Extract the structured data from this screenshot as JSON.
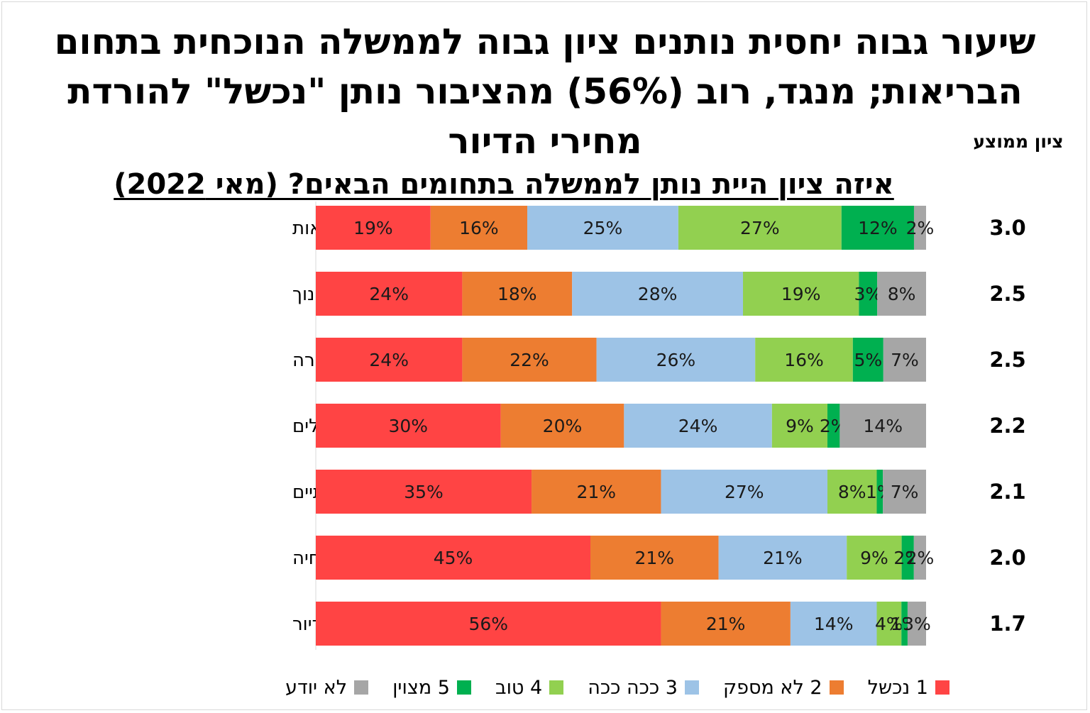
{
  "chart_data": {
    "type": "bar",
    "orientation": "horizontal-stacked-100",
    "title": "שיעור גבוה יחסית נותנים ציון גבוה לממשלה הנוכחית בתחום הבריאות; מנגד, רוב (56%) מהציבור נותן \"נכשל\" להורדת מחירי הדיור",
    "subtitle": "איזה ציון היית נותן לממשלה בתחומים הבאים? (מאי 2022)",
    "avg_header": "ציון ממוצע",
    "categories": [
      "בריאות",
      "שירותי החינוך",
      "שירותי תחבורה",
      "היערכות למשבר האקלים",
      "צמצום הפערים החברתיים",
      "הורדת יוקר המחיה",
      "הורדת מחירי הדיור"
    ],
    "averages": [
      "3.0",
      "2.5",
      "2.5",
      "2.2",
      "2.1",
      "2.0",
      "1.7"
    ],
    "series": [
      {
        "name": "1 נכשל",
        "color": "#ff4444",
        "values": [
          19,
          24,
          24,
          30,
          35,
          45,
          56
        ]
      },
      {
        "name": "2 לא מספק",
        "color": "#ed7d31",
        "values": [
          16,
          18,
          22,
          20,
          21,
          21,
          21
        ]
      },
      {
        "name": "3 ככה ככה",
        "color": "#9dc3e6",
        "values": [
          25,
          28,
          26,
          24,
          27,
          21,
          14
        ]
      },
      {
        "name": "4 טוב",
        "color": "#92d050",
        "values": [
          27,
          19,
          16,
          9,
          8,
          9,
          4
        ]
      },
      {
        "name": "5 מצוין",
        "color": "#00b050",
        "values": [
          12,
          3,
          5,
          2,
          1,
          2,
          1
        ]
      },
      {
        "name": "לא יודע",
        "color": "#a6a6a6",
        "values": [
          2,
          8,
          7,
          14,
          7,
          2,
          3
        ]
      }
    ],
    "value_suffix": "%",
    "legend_position": "bottom",
    "grid": false
  }
}
